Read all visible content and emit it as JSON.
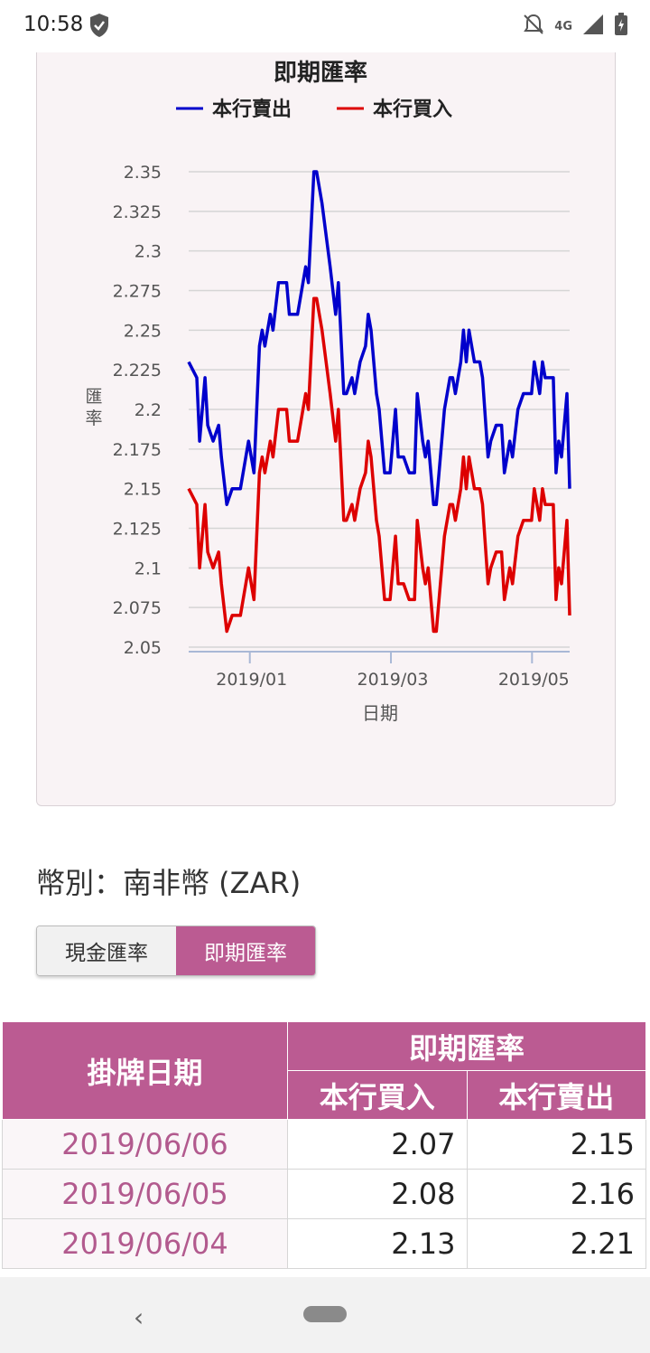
{
  "status_bar": {
    "time": "10:58",
    "network": "4G"
  },
  "chart_data": {
    "type": "line",
    "title": "即期匯率",
    "xlabel": "日期",
    "ylabel": "匯率",
    "ylim": [
      2.05,
      2.35
    ],
    "yticks": [
      "2.35",
      "2.325",
      "2.3",
      "2.275",
      "2.25",
      "2.225",
      "2.2",
      "2.175",
      "2.15",
      "2.125",
      "2.1",
      "2.075",
      "2.05"
    ],
    "xticks": [
      "2019/01",
      "2019/03",
      "2019/05"
    ],
    "legend_position": "top",
    "grid": true,
    "series": [
      {
        "name": "本行賣出",
        "color": "#0000cc",
        "points": [
          [
            0,
            2.23
          ],
          [
            3,
            2.22
          ],
          [
            4,
            2.18
          ],
          [
            6,
            2.22
          ],
          [
            7,
            2.19
          ],
          [
            9,
            2.18
          ],
          [
            11,
            2.19
          ],
          [
            12,
            2.17
          ],
          [
            14,
            2.14
          ],
          [
            16,
            2.15
          ],
          [
            19,
            2.15
          ],
          [
            21,
            2.17
          ],
          [
            22,
            2.18
          ],
          [
            24,
            2.16
          ],
          [
            26,
            2.24
          ],
          [
            27,
            2.25
          ],
          [
            28,
            2.24
          ],
          [
            30,
            2.26
          ],
          [
            31,
            2.25
          ],
          [
            33,
            2.28
          ],
          [
            36,
            2.28
          ],
          [
            37,
            2.26
          ],
          [
            40,
            2.26
          ],
          [
            42,
            2.28
          ],
          [
            43,
            2.29
          ],
          [
            44,
            2.28
          ],
          [
            46,
            2.35
          ],
          [
            47,
            2.35
          ],
          [
            49,
            2.33
          ],
          [
            52,
            2.29
          ],
          [
            54,
            2.26
          ],
          [
            55,
            2.28
          ],
          [
            57,
            2.21
          ],
          [
            58,
            2.21
          ],
          [
            60,
            2.22
          ],
          [
            61,
            2.21
          ],
          [
            63,
            2.23
          ],
          [
            65,
            2.24
          ],
          [
            66,
            2.26
          ],
          [
            67,
            2.25
          ],
          [
            69,
            2.21
          ],
          [
            70,
            2.2
          ],
          [
            72,
            2.16
          ],
          [
            74,
            2.16
          ],
          [
            75,
            2.18
          ],
          [
            76,
            2.2
          ],
          [
            77,
            2.17
          ],
          [
            79,
            2.17
          ],
          [
            81,
            2.16
          ],
          [
            83,
            2.16
          ],
          [
            84,
            2.21
          ],
          [
            86,
            2.18
          ],
          [
            87,
            2.17
          ],
          [
            88,
            2.18
          ],
          [
            90,
            2.14
          ],
          [
            91,
            2.14
          ],
          [
            94,
            2.2
          ],
          [
            96,
            2.22
          ],
          [
            97,
            2.22
          ],
          [
            98,
            2.21
          ],
          [
            100,
            2.23
          ],
          [
            101,
            2.25
          ],
          [
            102,
            2.23
          ],
          [
            103,
            2.25
          ],
          [
            104,
            2.24
          ],
          [
            105,
            2.23
          ],
          [
            107,
            2.23
          ],
          [
            108,
            2.22
          ],
          [
            110,
            2.17
          ],
          [
            111,
            2.18
          ],
          [
            113,
            2.19
          ],
          [
            115,
            2.19
          ],
          [
            116,
            2.16
          ],
          [
            118,
            2.18
          ],
          [
            119,
            2.17
          ],
          [
            121,
            2.2
          ],
          [
            123,
            2.21
          ],
          [
            126,
            2.21
          ],
          [
            127,
            2.23
          ],
          [
            128,
            2.22
          ],
          [
            129,
            2.21
          ],
          [
            130,
            2.23
          ],
          [
            131,
            2.22
          ],
          [
            134,
            2.22
          ],
          [
            135,
            2.16
          ],
          [
            136,
            2.18
          ],
          [
            137,
            2.17
          ],
          [
            139,
            2.21
          ],
          [
            140,
            2.15
          ]
        ]
      },
      {
        "name": "本行買入",
        "color": "#dd0000",
        "points": [
          [
            0,
            2.15
          ],
          [
            3,
            2.14
          ],
          [
            4,
            2.1
          ],
          [
            6,
            2.14
          ],
          [
            7,
            2.11
          ],
          [
            9,
            2.1
          ],
          [
            11,
            2.11
          ],
          [
            12,
            2.09
          ],
          [
            14,
            2.06
          ],
          [
            16,
            2.07
          ],
          [
            19,
            2.07
          ],
          [
            21,
            2.09
          ],
          [
            22,
            2.1
          ],
          [
            24,
            2.08
          ],
          [
            26,
            2.16
          ],
          [
            27,
            2.17
          ],
          [
            28,
            2.16
          ],
          [
            30,
            2.18
          ],
          [
            31,
            2.17
          ],
          [
            33,
            2.2
          ],
          [
            36,
            2.2
          ],
          [
            37,
            2.18
          ],
          [
            40,
            2.18
          ],
          [
            42,
            2.2
          ],
          [
            43,
            2.21
          ],
          [
            44,
            2.2
          ],
          [
            46,
            2.27
          ],
          [
            47,
            2.27
          ],
          [
            49,
            2.25
          ],
          [
            52,
            2.21
          ],
          [
            54,
            2.18
          ],
          [
            55,
            2.2
          ],
          [
            57,
            2.13
          ],
          [
            58,
            2.13
          ],
          [
            60,
            2.14
          ],
          [
            61,
            2.13
          ],
          [
            63,
            2.15
          ],
          [
            65,
            2.16
          ],
          [
            66,
            2.18
          ],
          [
            67,
            2.17
          ],
          [
            69,
            2.13
          ],
          [
            70,
            2.12
          ],
          [
            72,
            2.08
          ],
          [
            74,
            2.08
          ],
          [
            75,
            2.1
          ],
          [
            76,
            2.12
          ],
          [
            77,
            2.09
          ],
          [
            79,
            2.09
          ],
          [
            81,
            2.08
          ],
          [
            83,
            2.08
          ],
          [
            84,
            2.13
          ],
          [
            86,
            2.1
          ],
          [
            87,
            2.09
          ],
          [
            88,
            2.1
          ],
          [
            90,
            2.06
          ],
          [
            91,
            2.06
          ],
          [
            94,
            2.12
          ],
          [
            96,
            2.14
          ],
          [
            97,
            2.14
          ],
          [
            98,
            2.13
          ],
          [
            100,
            2.15
          ],
          [
            101,
            2.17
          ],
          [
            102,
            2.15
          ],
          [
            103,
            2.17
          ],
          [
            104,
            2.16
          ],
          [
            105,
            2.15
          ],
          [
            107,
            2.15
          ],
          [
            108,
            2.14
          ],
          [
            110,
            2.09
          ],
          [
            111,
            2.1
          ],
          [
            113,
            2.11
          ],
          [
            115,
            2.11
          ],
          [
            116,
            2.08
          ],
          [
            118,
            2.1
          ],
          [
            119,
            2.09
          ],
          [
            121,
            2.12
          ],
          [
            123,
            2.13
          ],
          [
            126,
            2.13
          ],
          [
            127,
            2.15
          ],
          [
            128,
            2.14
          ],
          [
            129,
            2.13
          ],
          [
            130,
            2.15
          ],
          [
            131,
            2.14
          ],
          [
            134,
            2.14
          ],
          [
            135,
            2.08
          ],
          [
            136,
            2.1
          ],
          [
            137,
            2.09
          ],
          [
            139,
            2.13
          ],
          [
            140,
            2.07
          ]
        ]
      }
    ]
  },
  "currency": {
    "label": "幣別：南非幣 (ZAR)"
  },
  "toggle": {
    "cash": "現金匯率",
    "spot": "即期匯率"
  },
  "table": {
    "header_date": "掛牌日期",
    "header_group": "即期匯率",
    "header_buy": "本行買入",
    "header_sell": "本行賣出",
    "rows": [
      {
        "date": "2019/06/06",
        "buy": "2.07",
        "sell": "2.15"
      },
      {
        "date": "2019/06/05",
        "buy": "2.08",
        "sell": "2.16"
      },
      {
        "date": "2019/06/04",
        "buy": "2.13",
        "sell": "2.21"
      }
    ]
  }
}
